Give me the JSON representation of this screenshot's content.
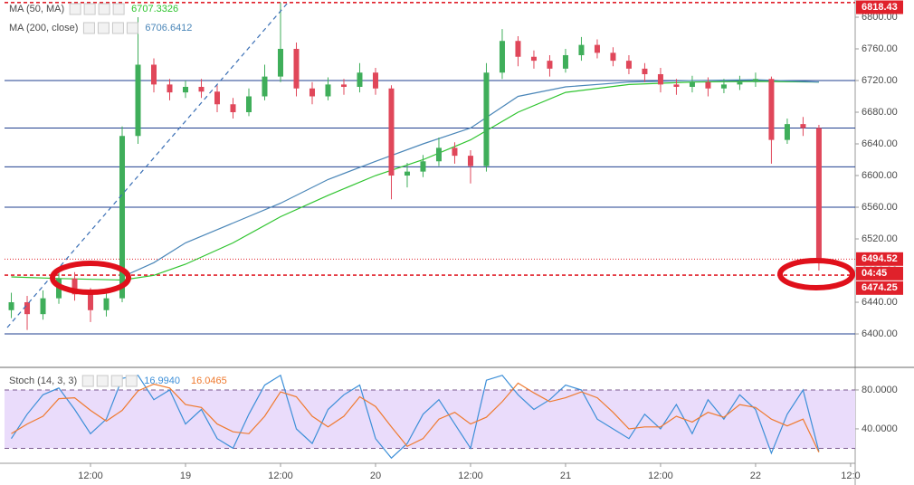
{
  "chart_data": [
    {
      "type": "candlestick",
      "xlim": [
        0.57,
        54.29
      ],
      "ylim": [
        6358.9,
        6821.7
      ],
      "yticks": [
        {
          "value": 6400,
          "label": "6400.00"
        },
        {
          "value": 6440,
          "label": "6440.00"
        },
        {
          "value": 6480,
          "label": "6480.00"
        },
        {
          "value": 6520,
          "label": "6520.00"
        },
        {
          "value": 6560,
          "label": "6560.00"
        },
        {
          "value": 6600,
          "label": "6600.00"
        },
        {
          "value": 6640,
          "label": "6640.00"
        },
        {
          "value": 6680,
          "label": "6680.00"
        },
        {
          "value": 6720,
          "label": "6720.00"
        },
        {
          "value": 6760,
          "label": "6760.00"
        },
        {
          "value": 6800,
          "label": "6800.00"
        }
      ],
      "up_color": "#3fae5a",
      "down_color": "#e0475a",
      "open": [
        6430,
        6440,
        6425,
        6445,
        6470,
        6450,
        6430,
        6445,
        6650,
        6740,
        6715,
        6705,
        6712,
        6706,
        6690,
        6680,
        6700,
        6725,
        6760,
        6710,
        6700,
        6715,
        6712,
        6730,
        6710,
        6600,
        6605,
        6618,
        6635,
        6625,
        6612,
        6730,
        6770,
        6750,
        6745,
        6735,
        6752,
        6765,
        6755,
        6745,
        6735,
        6728,
        6715,
        6712,
        6718,
        6710,
        6715,
        6718,
        6722,
        6645,
        6665,
        6660
      ],
      "high": [
        6452,
        6448,
        6455,
        6482,
        6478,
        6458,
        6455,
        6662,
        6800,
        6748,
        6722,
        6720,
        6722,
        6714,
        6698,
        6710,
        6740,
        6818.43,
        6768,
        6718,
        6724,
        6722,
        6742,
        6736,
        6714,
        6616,
        6626,
        6648,
        6642,
        6632,
        6742,
        6785,
        6776,
        6758,
        6752,
        6760,
        6775,
        6772,
        6762,
        6752,
        6742,
        6736,
        6722,
        6726,
        6724,
        6722,
        6726,
        6730,
        6725,
        6672,
        6674,
        6664
      ],
      "low": [
        6420,
        6405,
        6418,
        6438,
        6442,
        6415,
        6422,
        6440,
        6640,
        6705,
        6695,
        6698,
        6698,
        6680,
        6672,
        6675,
        6695,
        6718,
        6700,
        6690,
        6695,
        6702,
        6705,
        6702,
        6570,
        6585,
        6598,
        6612,
        6615,
        6590,
        6605,
        6722,
        6738,
        6735,
        6725,
        6730,
        6745,
        6748,
        6738,
        6728,
        6718,
        6705,
        6702,
        6705,
        6700,
        6704,
        6708,
        6712,
        6615,
        6640,
        6650,
        6480
      ],
      "close": [
        6440,
        6425,
        6445,
        6470,
        6450,
        6430,
        6445,
        6650,
        6740,
        6715,
        6705,
        6712,
        6706,
        6690,
        6680,
        6700,
        6725,
        6760,
        6710,
        6700,
        6715,
        6712,
        6730,
        6710,
        6600,
        6605,
        6618,
        6635,
        6625,
        6612,
        6730,
        6770,
        6750,
        6745,
        6735,
        6752,
        6765,
        6755,
        6745,
        6735,
        6728,
        6715,
        6712,
        6718,
        6710,
        6715,
        6718,
        6722,
        6645,
        6665,
        6660,
        6495
      ],
      "series": [
        {
          "name": "MA (50, MA)",
          "color": "#2fc42f",
          "legend_value": "6707.3326",
          "x": [
            1,
            4,
            8,
            10,
            12,
            15,
            18,
            21,
            24,
            27,
            30,
            33,
            36,
            40,
            44,
            48,
            52
          ],
          "values": [
            6472,
            6470,
            6468,
            6474,
            6488,
            6515,
            6548,
            6575,
            6600,
            6620,
            6645,
            6680,
            6705,
            6715,
            6718,
            6719,
            6718
          ]
        },
        {
          "name": "MA (200, close)",
          "color": "#4a86b8",
          "legend_value": "6706.6412",
          "x": [
            8,
            10,
            12,
            15,
            18,
            21,
            24,
            27,
            30,
            33,
            36,
            40,
            44,
            48,
            52
          ],
          "values": [
            6472,
            6490,
            6515,
            6540,
            6565,
            6595,
            6618,
            6640,
            6660,
            6700,
            6712,
            6718,
            6720,
            6721,
            6718
          ]
        }
      ],
      "hlines": [
        {
          "value": 6720,
          "color": "#1f3f8f"
        },
        {
          "value": 6660,
          "color": "#1f3f8f"
        },
        {
          "value": 6611,
          "color": "#1f3f8f"
        },
        {
          "value": 6560,
          "color": "#1f3f8f"
        },
        {
          "value": 6400,
          "color": "#1f3f8f"
        }
      ],
      "marked_levels": [
        {
          "value": 6818.43,
          "label": "6818.43",
          "style": "dashed"
        },
        {
          "value": 6494.52,
          "label": "6494.52",
          "style": "dotted",
          "countdown": "04:45"
        },
        {
          "value": 6474.25,
          "label": "6474.25",
          "style": "dashed"
        }
      ],
      "level_color": "#e0212b"
    },
    {
      "type": "line",
      "title": "Stoch (14, 3, 3)",
      "xlim": [
        0.57,
        54.29
      ],
      "ylim": [
        4.6,
        102.3
      ],
      "yticks": [
        {
          "value": 40,
          "label": "40.0000"
        },
        {
          "value": 80,
          "label": "80.0000"
        }
      ],
      "band": [
        20,
        80
      ],
      "band_color": "#eadcfb",
      "xticks": [
        {
          "value": 6,
          "label": "12:00"
        },
        {
          "value": 12,
          "label": "19"
        },
        {
          "value": 18,
          "label": "12:00"
        },
        {
          "value": 24,
          "label": "20"
        },
        {
          "value": 30,
          "label": "12:00"
        },
        {
          "value": 36,
          "label": "21"
        },
        {
          "value": 42,
          "label": "12:00"
        },
        {
          "value": 48,
          "label": "22"
        },
        {
          "value": 54,
          "label": "12:0"
        }
      ],
      "series": [
        {
          "color": "#3d8fd8",
          "legend_value": "16.9940",
          "values": [
            30,
            55,
            75,
            82,
            60,
            35,
            50,
            92,
            95,
            70,
            80,
            45,
            60,
            30,
            20,
            55,
            85,
            95,
            40,
            25,
            60,
            75,
            85,
            30,
            10,
            25,
            55,
            70,
            45,
            20,
            90,
            95,
            75,
            60,
            70,
            85,
            80,
            50,
            40,
            30,
            55,
            40,
            65,
            35,
            70,
            50,
            75,
            60,
            15,
            55,
            80,
            16.994
          ]
        },
        {
          "color": "#ef7a2f",
          "legend_value": "16.0465",
          "values": [
            35,
            45,
            53,
            71,
            72,
            59,
            48,
            59,
            79,
            86,
            82,
            65,
            62,
            45,
            37,
            35,
            53,
            78,
            73,
            53,
            42,
            53,
            73,
            63,
            42,
            22,
            30,
            50,
            57,
            45,
            52,
            68,
            87,
            77,
            68,
            72,
            78,
            72,
            57,
            40,
            42,
            42,
            53,
            47,
            57,
            52,
            65,
            62,
            50,
            43,
            50,
            16.0465
          ]
        }
      ]
    }
  ]
}
